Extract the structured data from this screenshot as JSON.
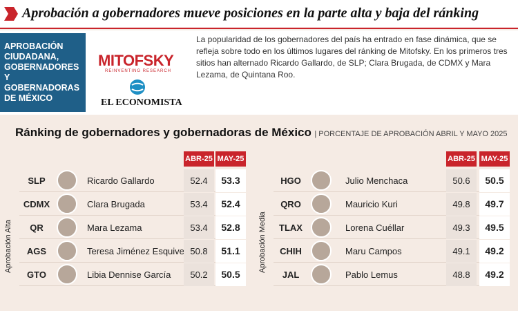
{
  "header": {
    "title": "Aprobación a gobernadores mueve posiciones en la parte alta y baja del ránking"
  },
  "intro": {
    "box_label": "APROBACIÓN CIUDADANA, GOBERNADORES Y GOBERNADORAS DE MÉXICO",
    "text": "La popularidad de los gobernadores del país ha entrado en fase dinámica, que se refleja sobre todo en los últimos lugares del ránking de Mitofsky. En los primeros tres sitios han alternado Ricardo Gallardo, de SLP; Clara Brugada, de CDMX y Mara Lezama, de Quintana Roo."
  },
  "logos": {
    "brand": "MITOFSKY",
    "tagline": "REINVENTING RESEARCH",
    "publisher": "EL ECONOMISTA"
  },
  "section": {
    "title": "Ránking de gobernadores y gobernadoras de México",
    "subtitle": "| PORCENTAJE DE APROBACIÓN ABRIL Y MAYO 2025"
  },
  "tables": [
    {
      "group": "Aprobación Alta",
      "columns": [
        "ABR-25",
        "MAY-25"
      ],
      "rows": [
        {
          "state": "SLP",
          "name": "Ricardo Gallardo",
          "abr": 52.4,
          "may": 53.3
        },
        {
          "state": "CDMX",
          "name": "Clara Brugada",
          "abr": 53.4,
          "may": 52.4
        },
        {
          "state": "QR",
          "name": "Mara Lezama",
          "abr": 53.4,
          "may": 52.8
        },
        {
          "state": "AGS",
          "name": "Teresa Jiménez Esquivel",
          "abr": 50.8,
          "may": 51.1
        },
        {
          "state": "GTO",
          "name": "Libia Dennise García",
          "abr": 50.2,
          "may": 50.5
        }
      ]
    },
    {
      "group": "Aprobación Media",
      "columns": [
        "ABR-25",
        "MAY-25"
      ],
      "rows": [
        {
          "state": "HGO",
          "name": "Julio Menchaca",
          "abr": 50.6,
          "may": 50.5
        },
        {
          "state": "QRO",
          "name": "Mauricio Kuri",
          "abr": 49.8,
          "may": 49.7
        },
        {
          "state": "TLAX",
          "name": "Lorena Cuéllar",
          "abr": 49.3,
          "may": 49.5
        },
        {
          "state": "CHIH",
          "name": "Maru Campos",
          "abr": 49.1,
          "may": 49.2
        },
        {
          "state": "JAL",
          "name": "Pablo Lemus",
          "abr": 48.8,
          "may": 49.2
        }
      ]
    }
  ]
}
